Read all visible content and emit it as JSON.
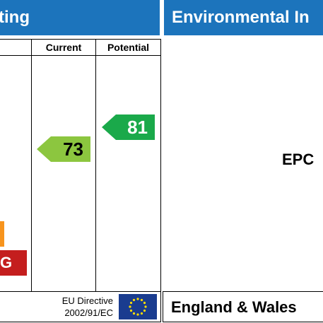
{
  "header": {
    "left_title": "ting",
    "right_title": "Environmental In"
  },
  "columns": {
    "current_label": "Current",
    "potential_label": "Potential"
  },
  "ratings": {
    "current_value": "73",
    "potential_value": "81",
    "current_color": "#8cc63f",
    "potential_color": "#1aa94a"
  },
  "bands": {
    "visible_band_label": "G",
    "band_g_color": "#c41e1e",
    "band_f_color": "#f7941d"
  },
  "footer": {
    "eu_directive_line1": "EU Directive",
    "eu_directive_line2": "2002/91/EC",
    "region": "England & Wales"
  },
  "right_panel": {
    "epc_text": "EPC"
  },
  "colors": {
    "header_blue": "#1c74bc",
    "eu_flag_blue": "#1a3c8f",
    "eu_star_yellow": "#ffdd00"
  }
}
